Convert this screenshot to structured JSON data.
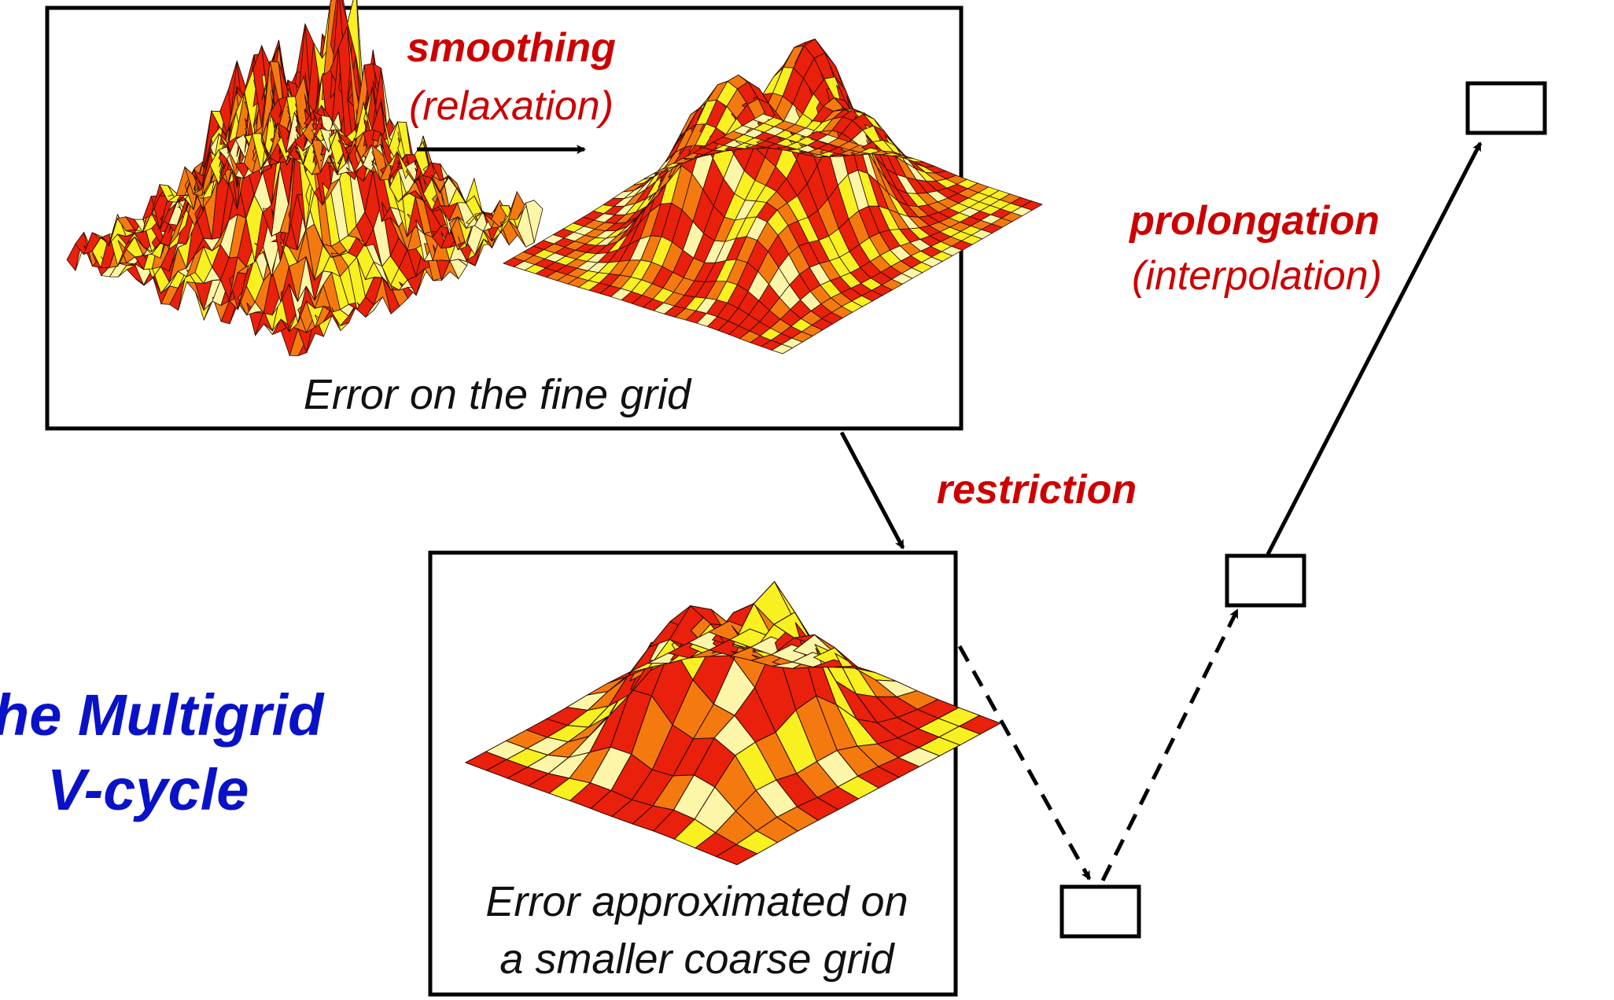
{
  "diagram": {
    "title_line1": "he Multigrid",
    "title_line2": "V-cycle",
    "smoothing": {
      "label": "smoothing",
      "sublabel": "(relaxation)"
    },
    "restriction": {
      "label": "restriction"
    },
    "prolongation": {
      "label": "prolongation",
      "sublabel": "(interpolation)"
    },
    "fine_panel": {
      "caption": "Error on the fine grid"
    },
    "coarse_panel": {
      "caption_line1": "Error approximated on",
      "caption_line2": "a smaller coarse grid"
    },
    "colors": {
      "accent_red": "#cc0000",
      "title_blue": "#0a12c8",
      "surface_red": "#e8200c",
      "surface_orange": "#f47a10",
      "surface_yellow": "#f8f020",
      "surface_cream": "#fdf6a8"
    },
    "v_cycle": {
      "levels": [
        "fine",
        "medium",
        "coarse"
      ],
      "descent": "dashed",
      "ascent": "dashed then solid"
    }
  }
}
